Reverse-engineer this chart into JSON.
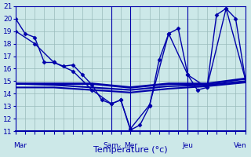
{
  "xlabel": "Température (°c)",
  "bg_color": "#cce8e8",
  "grid_color": "#99bbbb",
  "line_color": "#0000aa",
  "ylim": [
    11,
    21
  ],
  "yticks": [
    11,
    12,
    13,
    14,
    15,
    16,
    17,
    18,
    19,
    20,
    21
  ],
  "xlim": [
    0,
    24
  ],
  "day_labels": [
    "Mar",
    "Sam",
    "Mer",
    "Jeu",
    "Ven"
  ],
  "day_positions": [
    0.5,
    10,
    12,
    18,
    23.5
  ],
  "vline_positions": [
    0,
    10,
    12,
    18,
    24
  ],
  "lines": [
    {
      "x": [
        0,
        1,
        2,
        3,
        4,
        5,
        6,
        7,
        8,
        9,
        10,
        11,
        12,
        13,
        14,
        15,
        16,
        17,
        18,
        19,
        20,
        21,
        22,
        23,
        24
      ],
      "y": [
        20,
        18.8,
        18.5,
        16.5,
        16.5,
        16.2,
        16.3,
        15.5,
        14.7,
        13.5,
        13.2,
        13.5,
        11.1,
        11.5,
        13.0,
        16.7,
        18.8,
        19.2,
        15.5,
        14.3,
        14.5,
        20.3,
        20.8,
        20.0,
        15.2
      ],
      "lw": 1.0,
      "marker": "D",
      "ms": 2.5
    },
    {
      "x": [
        0,
        2,
        4,
        6,
        8,
        10,
        11,
        12,
        14,
        16,
        18,
        20,
        22,
        24
      ],
      "y": [
        19.0,
        18.0,
        16.5,
        15.8,
        14.3,
        13.2,
        13.5,
        11.2,
        13.1,
        18.8,
        15.5,
        14.5,
        20.8,
        15.2
      ],
      "lw": 1.0,
      "marker": "D",
      "ms": 2.5
    },
    {
      "x": [
        0,
        4,
        8,
        12,
        16,
        20,
        24
      ],
      "y": [
        14.8,
        14.8,
        14.8,
        14.5,
        14.8,
        14.8,
        15.2
      ],
      "lw": 2.0,
      "marker": null,
      "ms": 0
    },
    {
      "x": [
        0,
        4,
        8,
        12,
        16,
        20,
        24
      ],
      "y": [
        14.8,
        14.7,
        14.5,
        14.3,
        14.6,
        14.7,
        15.0
      ],
      "lw": 1.5,
      "marker": null,
      "ms": 0
    },
    {
      "x": [
        0,
        4,
        8,
        12,
        16,
        20,
        24
      ],
      "y": [
        14.5,
        14.5,
        14.3,
        14.1,
        14.4,
        14.6,
        14.9
      ],
      "lw": 1.5,
      "marker": null,
      "ms": 0
    }
  ]
}
